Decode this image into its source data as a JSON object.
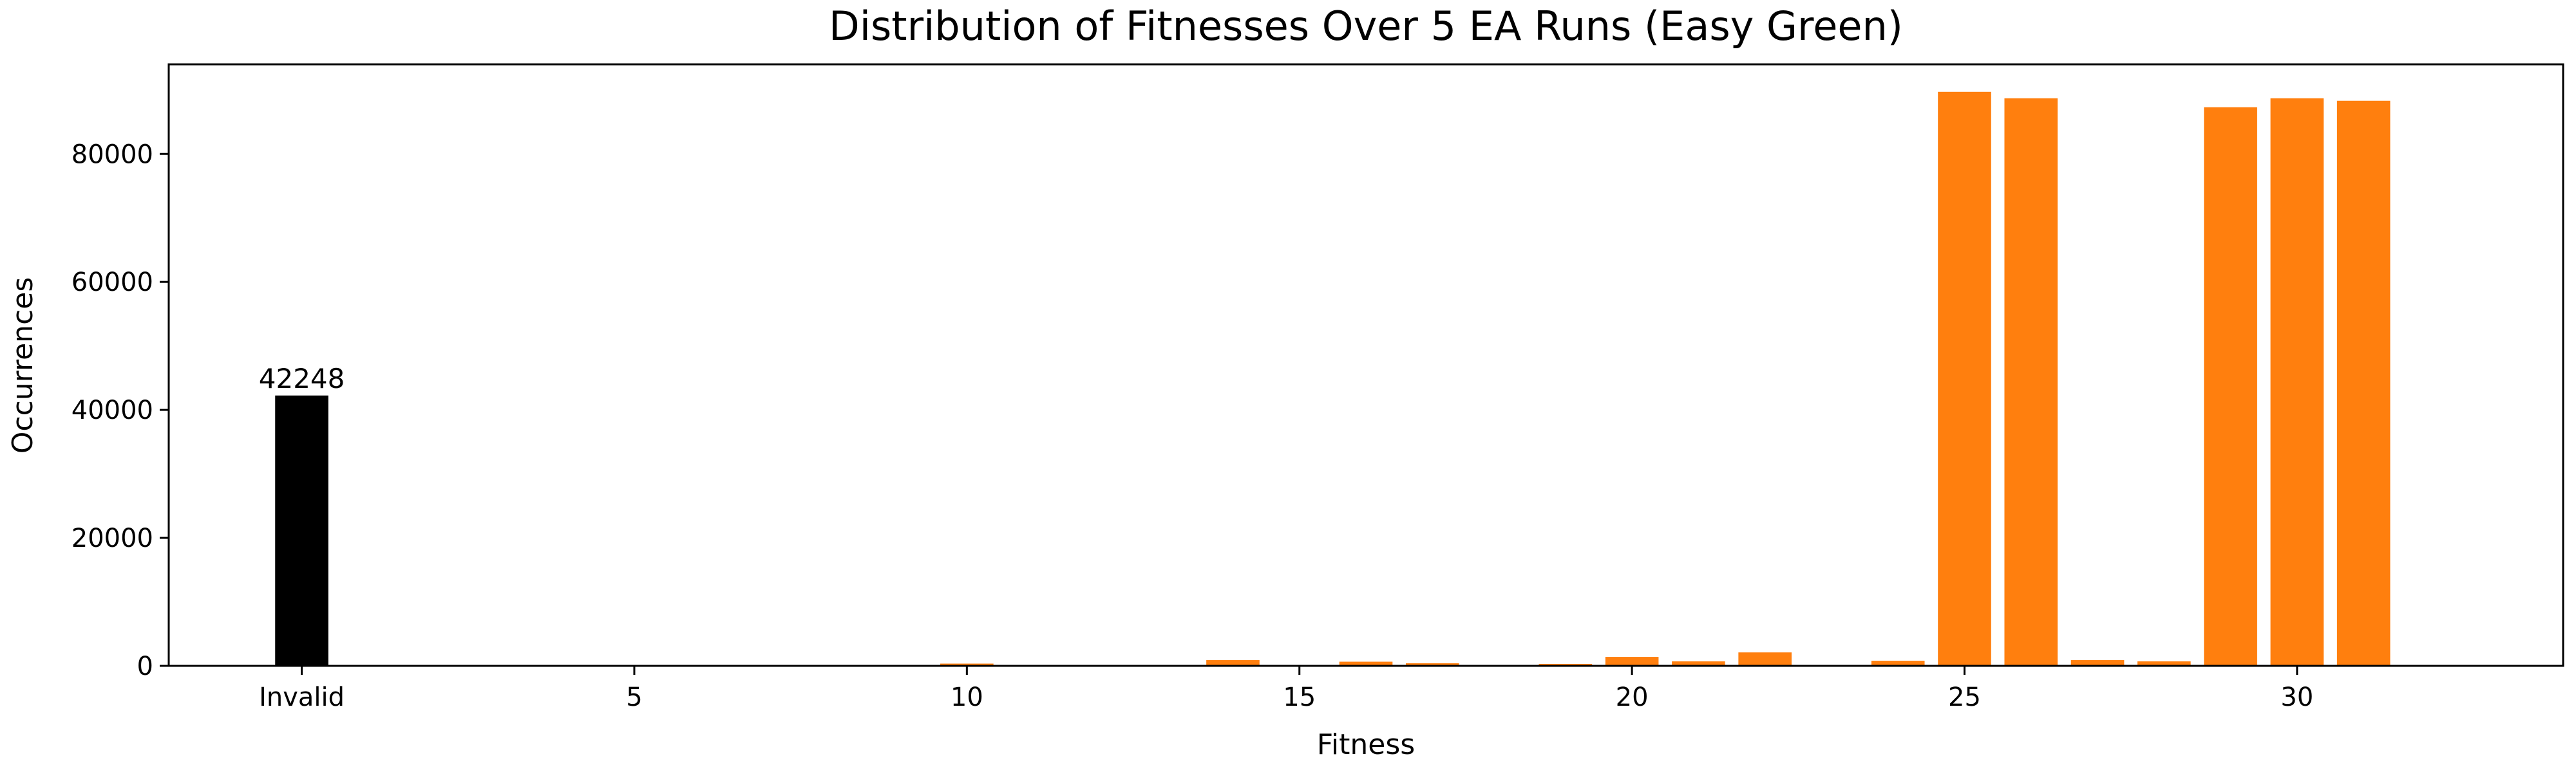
{
  "chart_data": {
    "type": "bar",
    "title": "Distribution of Fitnesses Over 5 EA Runs (Easy Green)",
    "xlabel": "Fitness",
    "ylabel": "Occurrences",
    "ylim": [
      0,
      94000
    ],
    "yticks": [
      0,
      20000,
      40000,
      60000,
      80000
    ],
    "xticks": [
      {
        "x": 0,
        "label": "Invalid"
      },
      {
        "x": 5,
        "label": "5"
      },
      {
        "x": 10,
        "label": "10"
      },
      {
        "x": 15,
        "label": "15"
      },
      {
        "x": 20,
        "label": "20"
      },
      {
        "x": 25,
        "label": "25"
      },
      {
        "x": 30,
        "label": "30"
      }
    ],
    "xlim": [
      -2,
      34
    ],
    "grid": false,
    "invalid_color": "#000000",
    "bar_color": "#ff7f0e",
    "bars": [
      {
        "x": 0,
        "value": 42248,
        "label": "42248",
        "invalid": true
      },
      {
        "x": 5,
        "value": 100
      },
      {
        "x": 8,
        "value": 150
      },
      {
        "x": 9,
        "value": 150
      },
      {
        "x": 10,
        "value": 350
      },
      {
        "x": 11,
        "value": 150
      },
      {
        "x": 12,
        "value": 150
      },
      {
        "x": 13,
        "value": 150
      },
      {
        "x": 14,
        "value": 900
      },
      {
        "x": 16,
        "value": 650
      },
      {
        "x": 17,
        "value": 400
      },
      {
        "x": 19,
        "value": 300
      },
      {
        "x": 20,
        "value": 1400
      },
      {
        "x": 21,
        "value": 700
      },
      {
        "x": 22,
        "value": 2100
      },
      {
        "x": 23,
        "value": 150
      },
      {
        "x": 24,
        "value": 800
      },
      {
        "x": 25,
        "value": 89700
      },
      {
        "x": 26,
        "value": 88700
      },
      {
        "x": 27,
        "value": 900
      },
      {
        "x": 28,
        "value": 700
      },
      {
        "x": 29,
        "value": 87300
      },
      {
        "x": 30,
        "value": 88700
      },
      {
        "x": 31,
        "value": 88300
      }
    ]
  }
}
